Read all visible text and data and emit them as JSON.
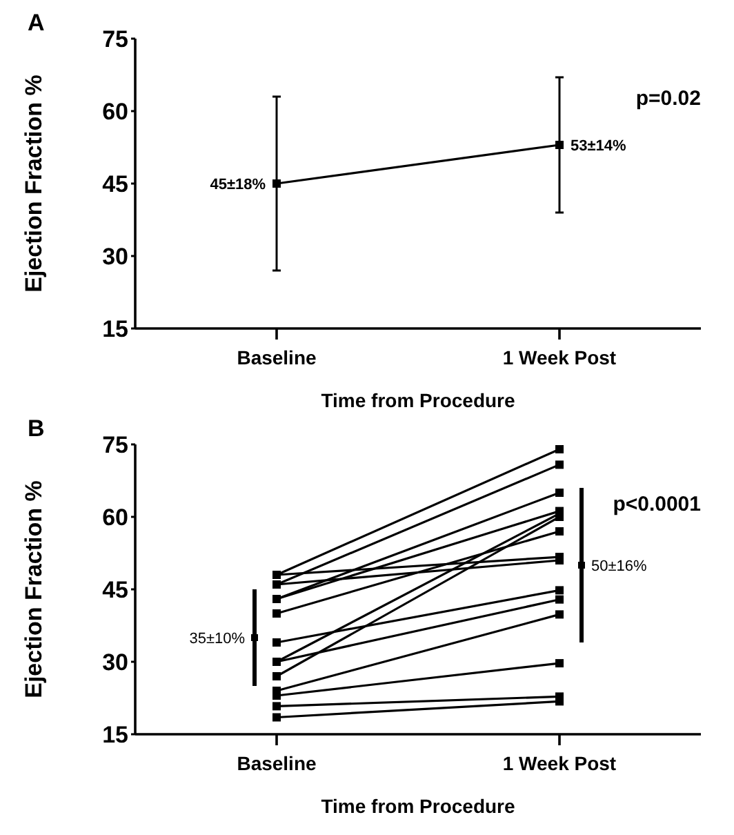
{
  "chart_data": [
    {
      "type": "line",
      "title": "A",
      "xlabel": "Time from Procedure",
      "ylabel": "Ejection Fraction %",
      "categories": [
        "Baseline",
        "1 Week Post"
      ],
      "ylim": [
        15,
        75
      ],
      "yticks": [
        15,
        30,
        45,
        60,
        75
      ],
      "marker": "square",
      "annotations": [
        "p=0.02"
      ],
      "series": [
        {
          "color": "#000000",
          "values": [
            45,
            53
          ],
          "errors": [
            18,
            14
          ],
          "value_labels": [
            "45±18%",
            "53±14%"
          ]
        }
      ]
    },
    {
      "type": "line",
      "title": "B",
      "xlabel": "Time from Procedure",
      "ylabel": "Ejection Fraction %",
      "categories": [
        "Baseline",
        "1 Week Post"
      ],
      "ylim": [
        15,
        75
      ],
      "yticks": [
        15,
        30,
        45,
        60,
        75
      ],
      "marker": "square",
      "annotations": [
        "p<0.0001"
      ],
      "series": [
        {
          "color": "#000000",
          "values": [
            48,
            74
          ]
        },
        {
          "color": "#000000",
          "values": [
            46,
            70.8
          ]
        },
        {
          "color": "#000000",
          "values": [
            43,
            65
          ]
        },
        {
          "color": "#000000",
          "values": [
            48,
            51.7
          ]
        },
        {
          "color": "#000000",
          "values": [
            46,
            51
          ]
        },
        {
          "color": "#000000",
          "values": [
            43,
            61.2
          ]
        },
        {
          "color": "#000000",
          "values": [
            40,
            57
          ]
        },
        {
          "color": "#000000",
          "values": [
            30,
            60.7
          ]
        },
        {
          "color": "#000000",
          "values": [
            27,
            60
          ]
        },
        {
          "color": "#000000",
          "values": [
            34,
            44.8
          ]
        },
        {
          "color": "#000000",
          "values": [
            30,
            42.9
          ]
        },
        {
          "color": "#000000",
          "values": [
            24,
            39.8
          ]
        },
        {
          "color": "#000000",
          "values": [
            23,
            29.7
          ]
        },
        {
          "color": "#000000",
          "values": [
            20.8,
            22.8
          ]
        },
        {
          "color": "#000000",
          "values": [
            18.5,
            21.8
          ]
        },
        {
          "type": "scatter",
          "color": "#000000",
          "values": [
            35,
            50
          ],
          "errors": [
            10,
            16
          ],
          "value_labels": [
            "35±10%",
            "50±16%"
          ]
        }
      ]
    }
  ]
}
